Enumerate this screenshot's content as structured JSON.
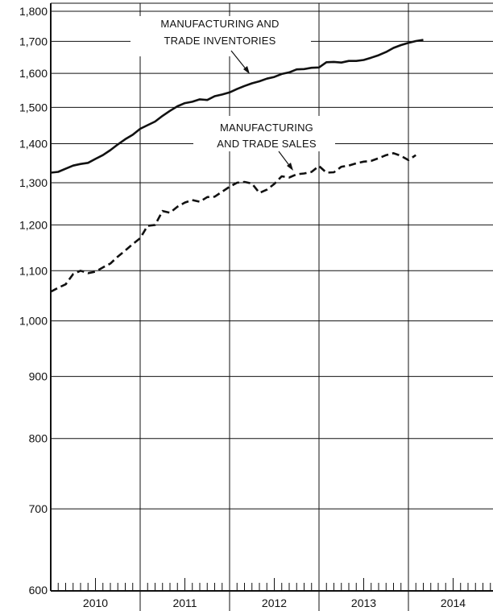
{
  "chart_data": {
    "type": "line",
    "scale": "log",
    "ylim": [
      600,
      1800
    ],
    "grid": true,
    "y_ticks": [
      {
        "value": 600,
        "label": "600"
      },
      {
        "value": 700,
        "label": "700"
      },
      {
        "value": 800,
        "label": "800"
      },
      {
        "value": 900,
        "label": "900"
      },
      {
        "value": 1000,
        "label": "1,000"
      },
      {
        "value": 1100,
        "label": "1,100"
      },
      {
        "value": 1200,
        "label": "1,200"
      },
      {
        "value": 1300,
        "label": "1,300"
      },
      {
        "value": 1400,
        "label": "1,400"
      },
      {
        "value": 1500,
        "label": "1,500"
      },
      {
        "value": 1600,
        "label": "1,600"
      },
      {
        "value": 1700,
        "label": "1,700"
      },
      {
        "value": 1800,
        "label": "1,800"
      }
    ],
    "years": [
      "2010",
      "2011",
      "2012",
      "2013",
      "2014"
    ],
    "series": [
      {
        "name_lines": [
          "MANUFACTURING AND",
          "TRADE INVENTORIES"
        ],
        "style": "solid",
        "x": [
          2010.0,
          2010.083,
          2010.167,
          2010.25,
          2010.333,
          2010.417,
          2010.5,
          2010.583,
          2010.667,
          2010.75,
          2010.833,
          2010.917,
          2011.0,
          2011.083,
          2011.167,
          2011.25,
          2011.333,
          2011.417,
          2011.5,
          2011.583,
          2011.667,
          2011.75,
          2011.833,
          2011.917,
          2012.0,
          2012.083,
          2012.167,
          2012.25,
          2012.333,
          2012.417,
          2012.5,
          2012.583,
          2012.667,
          2012.75,
          2012.833,
          2012.917,
          2013.0,
          2013.083,
          2013.167,
          2013.25,
          2013.333,
          2013.417,
          2013.5,
          2013.583,
          2013.667,
          2013.75,
          2013.833,
          2013.917,
          2014.0,
          2014.083,
          2014.167
        ],
        "values": [
          1325,
          1327,
          1335,
          1343,
          1347,
          1350,
          1360,
          1370,
          1383,
          1398,
          1412,
          1424,
          1440,
          1450,
          1460,
          1476,
          1490,
          1503,
          1512,
          1516,
          1523,
          1521,
          1532,
          1537,
          1543,
          1553,
          1562,
          1570,
          1576,
          1584,
          1589,
          1598,
          1603,
          1612,
          1613,
          1617,
          1618,
          1634,
          1635,
          1633,
          1638,
          1638,
          1641,
          1648,
          1656,
          1666,
          1679,
          1688,
          1695,
          1701,
          1705
        ]
      },
      {
        "name_lines": [
          "MANUFACTURING",
          "AND TRADE SALES"
        ],
        "style": "dashed",
        "x": [
          2010.0,
          2010.083,
          2010.167,
          2010.25,
          2010.333,
          2010.417,
          2010.5,
          2010.583,
          2010.667,
          2010.75,
          2010.833,
          2010.917,
          2011.0,
          2011.083,
          2011.167,
          2011.25,
          2011.333,
          2011.417,
          2011.5,
          2011.583,
          2011.667,
          2011.75,
          2011.833,
          2011.917,
          2012.0,
          2012.083,
          2012.167,
          2012.25,
          2012.333,
          2012.417,
          2012.5,
          2012.583,
          2012.667,
          2012.75,
          2012.833,
          2012.917,
          2013.0,
          2013.083,
          2013.167,
          2013.25,
          2013.333,
          2013.417,
          2013.5,
          2013.583,
          2013.667,
          2013.75,
          2013.833,
          2013.917,
          2014.0,
          2014.083
        ],
        "values": [
          1057,
          1065,
          1072,
          1093,
          1100,
          1095,
          1098,
          1107,
          1115,
          1130,
          1143,
          1157,
          1170,
          1198,
          1200,
          1232,
          1228,
          1242,
          1252,
          1258,
          1254,
          1265,
          1266,
          1278,
          1290,
          1300,
          1302,
          1298,
          1275,
          1283,
          1297,
          1316,
          1313,
          1321,
          1323,
          1327,
          1342,
          1325,
          1326,
          1340,
          1343,
          1349,
          1353,
          1355,
          1362,
          1370,
          1375,
          1368,
          1357,
          1370
        ]
      }
    ]
  }
}
